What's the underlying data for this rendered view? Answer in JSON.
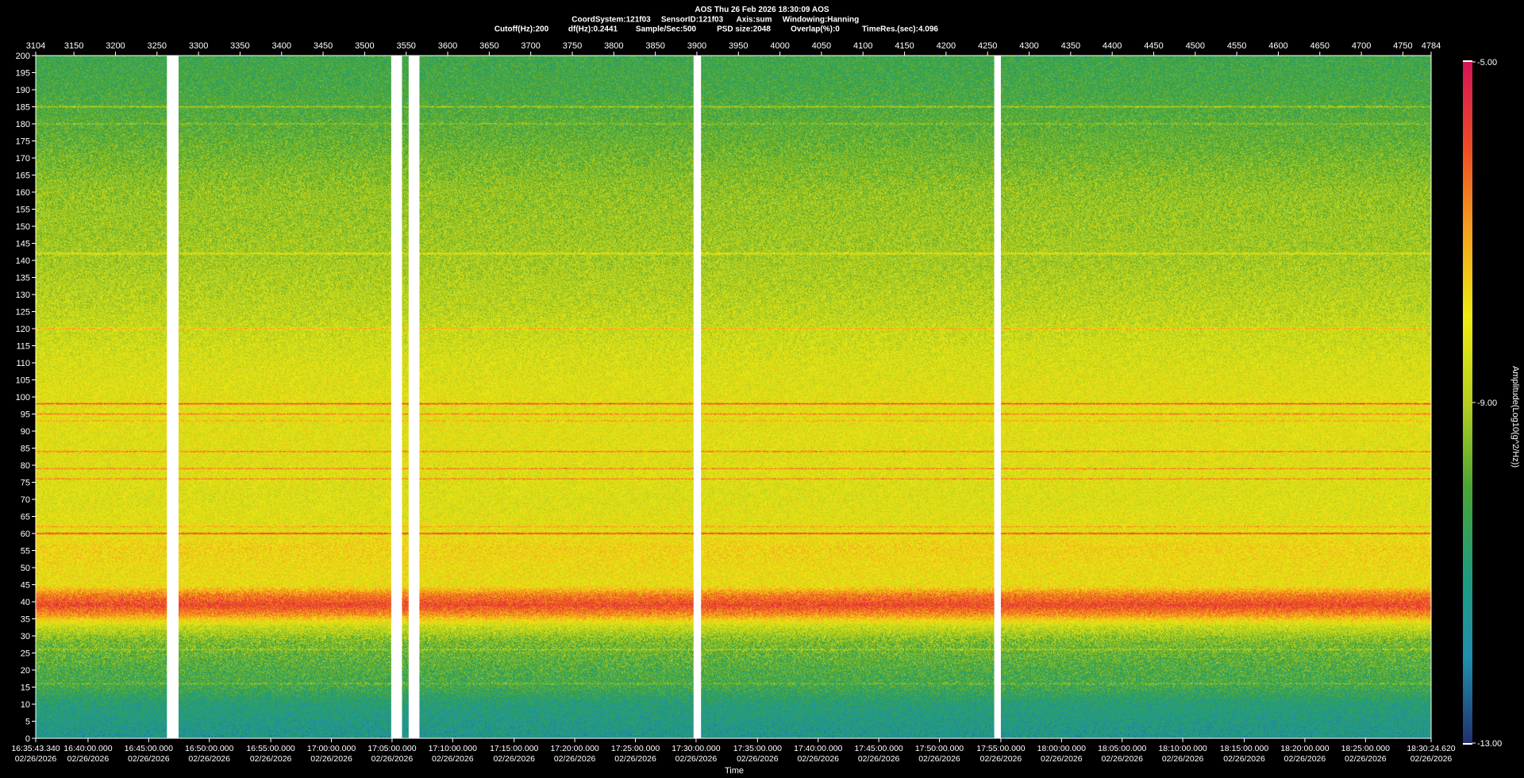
{
  "header": {
    "line1": "AOS  Thu 26 Feb 2026 18:30:09  AOS",
    "items2": [
      "CoordSystem:121f03",
      "SensorID:121f03",
      "Axis:sum",
      "Windowing:Hanning"
    ],
    "items3": [
      "Cutoff(Hz):200",
      "df(Hz):0.2441",
      "Sample/Sec:500",
      "PSD size:2048",
      "Overlap(%):0",
      "TimeRes.(sec):4.096"
    ]
  },
  "chart_data": {
    "type": "heatmap",
    "xlabel": "Time",
    "colorbar_label": "Amplitude(Log10(g^2/Hz))",
    "colorbar_range": [
      -13.0,
      -5.0
    ],
    "colorbar_ticks": [
      "-5.00",
      "-9.00",
      "-13.00"
    ],
    "colorscale": [
      "#21306e",
      "#1f8fb0",
      "#1f9d7a",
      "#4aa534",
      "#b6cf1f",
      "#eeeb12",
      "#f4a21d",
      "#ee4a25",
      "#d51456"
    ],
    "ylim": [
      0,
      200
    ],
    "yticks": [
      0,
      5,
      10,
      15,
      20,
      25,
      30,
      35,
      40,
      45,
      50,
      55,
      60,
      65,
      70,
      75,
      80,
      85,
      90,
      95,
      100,
      105,
      110,
      115,
      120,
      125,
      130,
      135,
      140,
      145,
      150,
      155,
      160,
      165,
      170,
      175,
      180,
      185,
      190,
      195,
      200
    ],
    "top_axis_range": [
      3104,
      4784
    ],
    "top_ticks": [
      "3104",
      "3150",
      "3200",
      "3250",
      "3300",
      "3350",
      "3400",
      "3450",
      "3500",
      "3550",
      "3600",
      "3650",
      "3700",
      "3750",
      "3800",
      "3850",
      "3900",
      "3950",
      "4000",
      "4050",
      "4100",
      "4150",
      "4200",
      "4250",
      "4300",
      "4350",
      "4400",
      "4450",
      "4500",
      "4550",
      "4600",
      "4650",
      "4700",
      "4750",
      "4784"
    ],
    "bottom_ticks": [
      {
        "index": 3104,
        "time": "16:35:43.340",
        "date": "02/26/2026"
      },
      {
        "index": 3167,
        "time": "16:40:00.000",
        "date": "02/26/2026"
      },
      {
        "index": 3240,
        "time": "16:45:00.000",
        "date": "02/26/2026"
      },
      {
        "index": 3313,
        "time": "16:50:00.000",
        "date": "02/26/2026"
      },
      {
        "index": 3387,
        "time": "16:55:00.000",
        "date": "02/26/2026"
      },
      {
        "index": 3460,
        "time": "17:00:00.000",
        "date": "02/26/2026"
      },
      {
        "index": 3533,
        "time": "17:05:00.000",
        "date": "02/26/2026"
      },
      {
        "index": 3606,
        "time": "17:10:00.000",
        "date": "02/26/2026"
      },
      {
        "index": 3680,
        "time": "17:15:00.000",
        "date": "02/26/2026"
      },
      {
        "index": 3753,
        "time": "17:20:00.000",
        "date": "02/26/2026"
      },
      {
        "index": 3826,
        "time": "17:25:00.000",
        "date": "02/26/2026"
      },
      {
        "index": 3899,
        "time": "17:30:00.000",
        "date": "02/26/2026"
      },
      {
        "index": 3973,
        "time": "17:35:00.000",
        "date": "02/26/2026"
      },
      {
        "index": 4046,
        "time": "17:40:00.000",
        "date": "02/26/2026"
      },
      {
        "index": 4119,
        "time": "17:45:00.000",
        "date": "02/26/2026"
      },
      {
        "index": 4192,
        "time": "17:50:00.000",
        "date": "02/26/2026"
      },
      {
        "index": 4266,
        "time": "17:55:00.000",
        "date": "02/26/2026"
      },
      {
        "index": 4339,
        "time": "18:00:00.000",
        "date": "02/26/2026"
      },
      {
        "index": 4412,
        "time": "18:05:00.000",
        "date": "02/26/2026"
      },
      {
        "index": 4485,
        "time": "18:10:00.000",
        "date": "02/26/2026"
      },
      {
        "index": 4559,
        "time": "18:15:00.000",
        "date": "02/26/2026"
      },
      {
        "index": 4632,
        "time": "18:20:00.000",
        "date": "02/26/2026"
      },
      {
        "index": 4705,
        "time": "18:25:00.000",
        "date": "02/26/2026"
      },
      {
        "index": 4784,
        "time": "18:30:24.620",
        "date": "02/26/2026"
      }
    ],
    "data_gaps": [
      [
        3262,
        3276
      ],
      [
        3532,
        3545
      ],
      [
        3553,
        3566
      ],
      [
        3896,
        3905
      ],
      [
        4258,
        4266
      ]
    ],
    "spectral_lines_hz": [
      {
        "freq": 185,
        "level": "medium"
      },
      {
        "freq": 180,
        "level": "low"
      },
      {
        "freq": 142,
        "level": "medium"
      },
      {
        "freq": 120,
        "level": "high"
      },
      {
        "freq": 98,
        "level": "very-high"
      },
      {
        "freq": 95,
        "level": "high"
      },
      {
        "freq": 93,
        "level": "medium"
      },
      {
        "freq": 84,
        "level": "high"
      },
      {
        "freq": 79,
        "level": "high"
      },
      {
        "freq": 76,
        "level": "high"
      },
      {
        "freq": 62,
        "level": "medium"
      },
      {
        "freq": 60,
        "level": "very-high"
      },
      {
        "freq": 26,
        "level": "low"
      },
      {
        "freq": 16,
        "level": "low"
      }
    ],
    "background_profile": [
      {
        "freq": 0,
        "level": -11.4
      },
      {
        "freq": 10,
        "level": -11.0
      },
      {
        "freq": 15,
        "level": -10.3
      },
      {
        "freq": 20,
        "level": -10.1
      },
      {
        "freq": 28,
        "level": -9.6
      },
      {
        "freq": 33,
        "level": -8.6
      },
      {
        "freq": 36,
        "level": -6.9
      },
      {
        "freq": 39,
        "level": -5.9
      },
      {
        "freq": 42,
        "level": -6.6
      },
      {
        "freq": 45,
        "level": -8.0
      },
      {
        "freq": 50,
        "level": -7.9
      },
      {
        "freq": 56,
        "level": -7.7
      },
      {
        "freq": 60,
        "level": -8.1
      },
      {
        "freq": 70,
        "level": -8.3
      },
      {
        "freq": 85,
        "level": -8.2
      },
      {
        "freq": 100,
        "level": -8.2
      },
      {
        "freq": 110,
        "level": -8.4
      },
      {
        "freq": 125,
        "level": -8.8
      },
      {
        "freq": 140,
        "level": -9.1
      },
      {
        "freq": 160,
        "level": -9.3
      },
      {
        "freq": 175,
        "level": -9.8
      },
      {
        "freq": 190,
        "level": -10.2
      },
      {
        "freq": 200,
        "level": -10.3
      }
    ]
  }
}
